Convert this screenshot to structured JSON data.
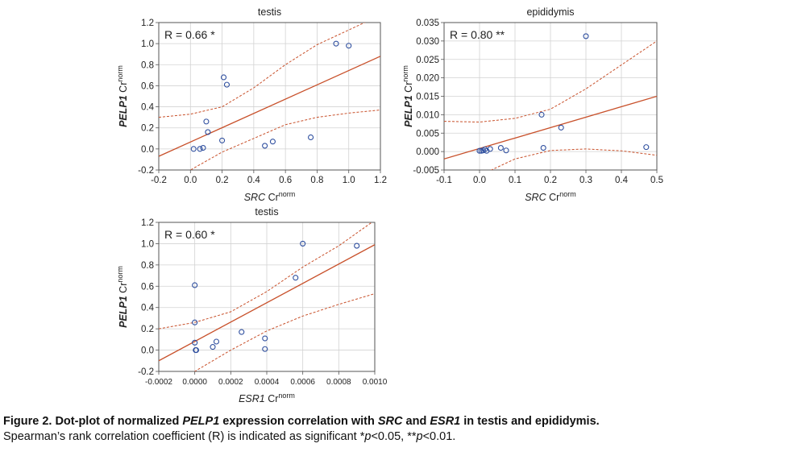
{
  "chart_data": [
    {
      "type": "scatter",
      "title": "testis",
      "xlabel": {
        "gene": "SRC",
        "main": " Cr",
        "sup": "norm"
      },
      "ylabel": {
        "gene": "PELP1",
        "main": " Cr",
        "sup": "norm"
      },
      "annotation": "R = 0.66 *",
      "xlim": [
        -0.2,
        1.2
      ],
      "ylim": [
        -0.2,
        1.2
      ],
      "xticks": [
        "-0.2",
        "0.0",
        "0.2",
        "0.4",
        "0.6",
        "0.8",
        "1.0",
        "1.2"
      ],
      "yticks": [
        "-0.2",
        "0.0",
        "0.2",
        "0.4",
        "0.6",
        "0.8",
        "1.0",
        "1.2"
      ],
      "grid": true,
      "points": {
        "x": [
          0.02,
          0.06,
          0.08,
          0.1,
          0.11,
          0.2,
          0.21,
          0.23,
          0.47,
          0.52,
          0.76,
          0.92,
          1.0
        ],
        "y": [
          0.0,
          0.0,
          0.01,
          0.26,
          0.16,
          0.08,
          0.68,
          0.61,
          0.03,
          0.07,
          0.11,
          1.0,
          0.98
        ]
      },
      "fit_line": {
        "x": [
          -0.2,
          1.2
        ],
        "y": [
          -0.07,
          0.88
        ]
      },
      "confidence_band": {
        "x": [
          -0.2,
          0.0,
          0.2,
          0.4,
          0.6,
          0.8,
          1.0,
          1.2
        ],
        "upper": [
          0.3,
          0.33,
          0.4,
          0.58,
          0.8,
          0.99,
          1.13,
          1.27
        ],
        "lower": [
          -0.43,
          -0.2,
          -0.03,
          0.1,
          0.23,
          0.3,
          0.34,
          0.37
        ]
      }
    },
    {
      "type": "scatter",
      "title": "epididymis",
      "xlabel": {
        "gene": "SRC",
        "main": " Cr",
        "sup": "norm"
      },
      "ylabel": {
        "gene": "PELP1",
        "main": " Cr",
        "sup": "norm"
      },
      "annotation": "R = 0.80 **",
      "xlim": [
        -0.1,
        0.5
      ],
      "ylim": [
        -0.005,
        0.035
      ],
      "xticks": [
        "-0.1",
        "0.0",
        "0.1",
        "0.2",
        "0.3",
        "0.4",
        "0.5"
      ],
      "yticks": [
        "-0.005",
        "0.000",
        "0.005",
        "0.010",
        "0.015",
        "0.020",
        "0.025",
        "0.030",
        "0.035"
      ],
      "grid": true,
      "points": {
        "x": [
          0.0,
          0.005,
          0.01,
          0.015,
          0.02,
          0.03,
          0.06,
          0.075,
          0.175,
          0.18,
          0.23,
          0.3,
          0.47
        ],
        "y": [
          0.0002,
          0.0002,
          0.0003,
          0.0006,
          0.0002,
          0.0007,
          0.001,
          0.0003,
          0.01,
          0.001,
          0.0065,
          0.0313,
          0.0012
        ]
      },
      "fit_line": {
        "x": [
          -0.1,
          0.5
        ],
        "y": [
          -0.002,
          0.015
        ]
      },
      "confidence_band": {
        "x": [
          -0.1,
          0.0,
          0.1,
          0.2,
          0.3,
          0.4,
          0.5
        ],
        "upper": [
          0.0082,
          0.008,
          0.009,
          0.0115,
          0.017,
          0.0235,
          0.03
        ],
        "lower": [
          -0.0115,
          -0.0065,
          -0.002,
          0.0003,
          0.0007,
          0.0002,
          -0.001
        ]
      }
    },
    {
      "type": "scatter",
      "title": "testis",
      "xlabel": {
        "gene": "ESR1",
        "main": " Cr",
        "sup": "norm"
      },
      "ylabel": {
        "gene": "PELP1",
        "main": " Cr",
        "sup": "norm"
      },
      "annotation": "R = 0.60 *",
      "xlim": [
        -0.0002,
        0.001
      ],
      "ylim": [
        -0.2,
        1.2
      ],
      "xticks": [
        "-0.0002",
        "0.0000",
        "0.0002",
        "0.0004",
        "0.0006",
        "0.0008",
        "0.0010"
      ],
      "yticks": [
        "-0.2",
        "0.0",
        "0.2",
        "0.4",
        "0.6",
        "0.8",
        "1.0",
        "1.2"
      ],
      "grid": true,
      "points": {
        "x": [
          0.0,
          0.0,
          0.0,
          5e-06,
          8e-06,
          0.0001,
          0.00012,
          0.00026,
          0.00039,
          0.00039,
          0.00056,
          0.0006,
          0.0009
        ],
        "y": [
          0.61,
          0.26,
          0.07,
          0.0,
          0.0,
          0.03,
          0.08,
          0.17,
          0.11,
          0.01,
          0.68,
          1.0,
          0.98
        ]
      },
      "fit_line": {
        "x": [
          -0.0002,
          0.001
        ],
        "y": [
          -0.1,
          0.99
        ]
      },
      "confidence_band": {
        "x": [
          -0.0002,
          0.0,
          0.0002,
          0.0004,
          0.0006,
          0.0008,
          0.001
        ],
        "upper": [
          0.2,
          0.26,
          0.36,
          0.55,
          0.78,
          0.98,
          1.22
        ],
        "lower": [
          -0.45,
          -0.2,
          0.0,
          0.18,
          0.32,
          0.43,
          0.53
        ]
      }
    }
  ],
  "caption": {
    "line1_parts": [
      {
        "text": "Figure 2. Dot-plot of normalized ",
        "italic": false
      },
      {
        "text": "PELP1",
        "italic": true
      },
      {
        "text": " expression correlation with ",
        "italic": false
      },
      {
        "text": "SRC",
        "italic": true
      },
      {
        "text": " and ",
        "italic": false
      },
      {
        "text": "ESR1",
        "italic": true
      },
      {
        "text": " in testis and epididymis.",
        "italic": false
      }
    ],
    "line2_parts": [
      {
        "text": "Spearman’s rank correlation coefficient (R) is indicated as significant *",
        "italic": false
      },
      {
        "text": "p",
        "italic": true
      },
      {
        "text": "<0.05, **",
        "italic": false
      },
      {
        "text": "p",
        "italic": true
      },
      {
        "text": "<0.01.",
        "italic": false
      }
    ]
  },
  "colors": {
    "grid": "#d2d2d2",
    "axis": "#555555",
    "fit_line": "#c8502a",
    "band": "#c8502a",
    "point_stroke": "#2f4f9f"
  }
}
